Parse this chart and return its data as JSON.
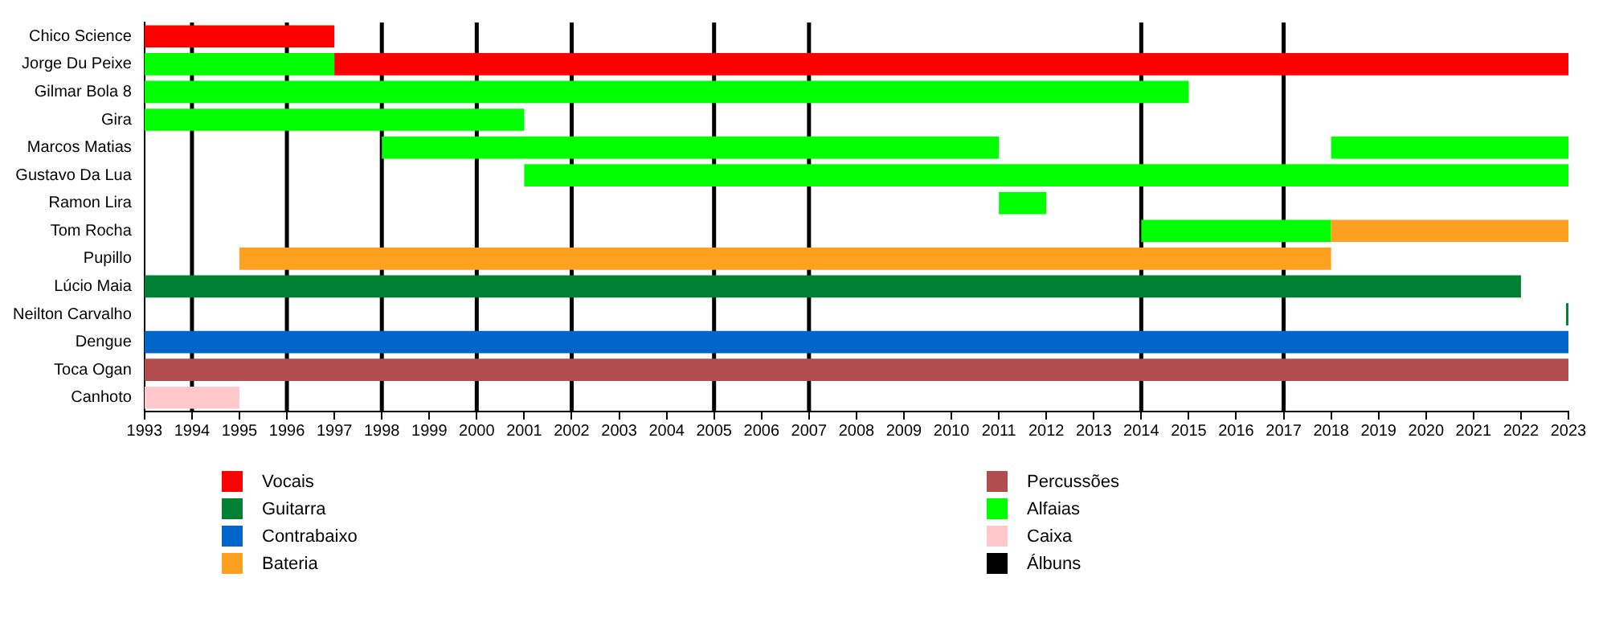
{
  "chart_data": {
    "type": "bar",
    "orientation": "horizontal",
    "legend": "bottom",
    "grid": false,
    "categories": [
      "Chico Science",
      "Jorge Du Peixe",
      "Gilmar Bola 8",
      "Gira",
      "Marcos Matias",
      "Gustavo Da Lua",
      "Ramon Lira",
      "Tom Rocha",
      "Pupillo",
      "Lúcio Maia",
      "Neilton Carvalho",
      "Dengue",
      "Toca Ogan",
      "Canhoto"
    ],
    "xlim": [
      1993,
      2023
    ],
    "xticks": [
      1993,
      1994,
      1995,
      1996,
      1997,
      1998,
      1999,
      2000,
      2001,
      2002,
      2003,
      2004,
      2005,
      2006,
      2007,
      2008,
      2009,
      2010,
      2011,
      2012,
      2013,
      2014,
      2015,
      2016,
      2017,
      2018,
      2019,
      2020,
      2021,
      2022,
      2023
    ],
    "series": [
      {
        "name": "Vocais",
        "color": "#ff0000",
        "base": [
          1993,
          1997,
          null,
          null,
          null,
          null,
          null,
          null,
          null,
          null,
          null,
          null,
          null,
          null
        ],
        "values": [
          4,
          26,
          null,
          null,
          null,
          null,
          null,
          null,
          null,
          null,
          null,
          null,
          null,
          null
        ]
      },
      {
        "name": "Guitarra",
        "color": "#008033",
        "base": [
          null,
          null,
          null,
          null,
          null,
          null,
          null,
          null,
          null,
          1993,
          2022.95,
          null,
          null,
          null
        ],
        "values": [
          null,
          null,
          null,
          null,
          null,
          null,
          null,
          null,
          null,
          29,
          0.05,
          null,
          null,
          null
        ]
      },
      {
        "name": "Contrabaixo",
        "color": "#0066cc",
        "base": [
          null,
          null,
          null,
          null,
          null,
          null,
          null,
          null,
          null,
          null,
          null,
          1993,
          null,
          null
        ],
        "values": [
          null,
          null,
          null,
          null,
          null,
          null,
          null,
          null,
          null,
          null,
          null,
          30,
          null,
          null
        ]
      },
      {
        "name": "Bateria",
        "color": "#ffa020",
        "base": [
          null,
          null,
          null,
          null,
          null,
          null,
          null,
          2018,
          1995,
          null,
          null,
          null,
          null,
          null
        ],
        "values": [
          null,
          null,
          null,
          null,
          null,
          null,
          null,
          5,
          23,
          null,
          null,
          null,
          null,
          null
        ]
      },
      {
        "name": "Percussões",
        "color": "#b34d4d",
        "base": [
          null,
          null,
          null,
          null,
          null,
          null,
          null,
          null,
          null,
          null,
          null,
          null,
          1993,
          null
        ],
        "values": [
          null,
          null,
          null,
          null,
          null,
          null,
          null,
          null,
          null,
          null,
          null,
          null,
          30,
          null
        ]
      },
      {
        "name": "Alfaias",
        "color": "#00ff00",
        "base": [
          null,
          1993,
          1993,
          1993,
          1998,
          2001,
          2011,
          2014,
          null,
          null,
          null,
          null,
          null,
          null
        ],
        "values": [
          null,
          4,
          22,
          8,
          13,
          22,
          1,
          4,
          null,
          null,
          null,
          null,
          null,
          null
        ]
      },
      {
        "name": "Caixa",
        "color": "#ffc8cb",
        "base": [
          null,
          null,
          null,
          null,
          null,
          null,
          null,
          null,
          null,
          null,
          null,
          null,
          null,
          1993
        ],
        "values": [
          null,
          null,
          null,
          null,
          null,
          null,
          null,
          null,
          null,
          null,
          null,
          null,
          null,
          2
        ]
      },
      {
        "color": "#00ff00",
        "base": [
          null,
          null,
          null,
          null,
          2018,
          null,
          null,
          null,
          null,
          null,
          null,
          null,
          null,
          null
        ],
        "values": [
          null,
          null,
          null,
          null,
          5,
          null,
          null,
          null,
          null,
          null,
          null,
          null,
          null,
          null
        ]
      }
    ],
    "ref_lines": [
      {
        "axis": "x",
        "value": 1994,
        "color": "#000000",
        "label": "Álbuns"
      },
      {
        "axis": "x",
        "value": 1996,
        "color": "#000000"
      },
      {
        "axis": "x",
        "value": 1998,
        "color": "#000000"
      },
      {
        "axis": "x",
        "value": 2000,
        "color": "#000000"
      },
      {
        "axis": "x",
        "value": 2002,
        "color": "#000000"
      },
      {
        "axis": "x",
        "value": 2005,
        "color": "#000000"
      },
      {
        "axis": "x",
        "value": 2007,
        "color": "#000000"
      },
      {
        "axis": "x",
        "value": 2014,
        "color": "#000000"
      },
      {
        "axis": "x",
        "value": 2017,
        "color": "#000000"
      }
    ]
  }
}
